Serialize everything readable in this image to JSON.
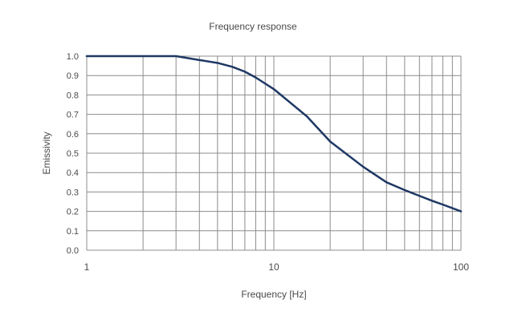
{
  "chart_data": {
    "type": "line",
    "title": "Frequency response",
    "xlabel": "Frequency [Hz]",
    "ylabel": "Emissivity",
    "x_scale": "log",
    "xlim": [
      1,
      100
    ],
    "ylim": [
      0.0,
      1.0
    ],
    "grid": true,
    "legend": "none",
    "x_tick_labels": [
      "1",
      "10",
      "100"
    ],
    "y_tick_labels": [
      "0.0",
      "0.1",
      "0.2",
      "0.3",
      "0.4",
      "0.5",
      "0.6",
      "0.7",
      "0.8",
      "0.9",
      "1.0"
    ],
    "series": [
      {
        "color": "#1f3864",
        "x": [
          1,
          2,
          3,
          4,
          5,
          6,
          7,
          8,
          10,
          15,
          20,
          30,
          40,
          50,
          60,
          70,
          80,
          100
        ],
        "y": [
          1.0,
          1.0,
          1.0,
          0.98,
          0.965,
          0.945,
          0.92,
          0.89,
          0.83,
          0.69,
          0.56,
          0.43,
          0.35,
          0.31,
          0.28,
          0.255,
          0.235,
          0.2
        ]
      }
    ]
  }
}
